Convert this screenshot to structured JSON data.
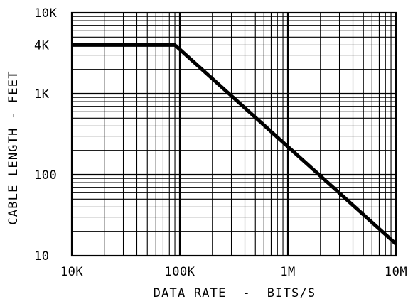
{
  "chart_data": {
    "type": "line",
    "xlabel": "DATA RATE  -  BITS/S",
    "ylabel": "CABLE LENGTH - FEET",
    "x_scale": "log",
    "y_scale": "log",
    "xlim": [
      10000,
      10000000
    ],
    "ylim": [
      10,
      10000
    ],
    "grid": true,
    "x_ticks": [
      {
        "value": 10000,
        "label": "10K"
      },
      {
        "value": 100000,
        "label": "100K"
      },
      {
        "value": 1000000,
        "label": "1M"
      },
      {
        "value": 10000000,
        "label": "10M"
      }
    ],
    "y_ticks": [
      {
        "value": 10,
        "label": "10"
      },
      {
        "value": 100,
        "label": "100"
      },
      {
        "value": 1000,
        "label": "1K"
      },
      {
        "value": 4000,
        "label": "4K"
      },
      {
        "value": 10000,
        "label": "10K"
      }
    ],
    "series": [
      {
        "x": [
          10000,
          90000,
          10000000
        ],
        "y": [
          4000,
          4000,
          14
        ],
        "color": "#000000"
      }
    ]
  }
}
